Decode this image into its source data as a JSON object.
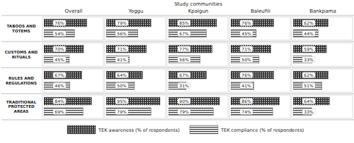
{
  "chart_data": {
    "type": "bar",
    "orientation": "horizontal",
    "title": "Study communities",
    "data_labels": true,
    "tick_labels": false,
    "legend": "bottom",
    "xlim": [
      0,
      100
    ],
    "panels": [
      "Overall",
      "Yoggu",
      "Kpalgun",
      "Baleufili",
      "Bankpama"
    ],
    "categories": [
      "TABOOS AND TOTEMS",
      "CUSTOMS AND RITUALS",
      "RULES AND REGULATIONS",
      "TRADITIONAL PROTECTED AREAS"
    ],
    "series": [
      {
        "name": "TEK awareness (% of respondents)",
        "color": "#3a3a3a",
        "values": [
          [
            76,
            79,
            85,
            76,
            62
          ],
          [
            70,
            71,
            77,
            71,
            59
          ],
          [
            67,
            64,
            67,
            76,
            62
          ],
          [
            84,
            95,
            90,
            86,
            64
          ]
        ],
        "value_labels": [
          [
            "76%",
            "79%",
            "85%",
            "76%",
            "62%"
          ],
          [
            "70%",
            "71%",
            "77%",
            "71%",
            "59%"
          ],
          [
            "67%",
            "64%",
            "67%",
            "76%",
            "62%"
          ],
          [
            "84%",
            "95%",
            "90%",
            "86%",
            "64%"
          ]
        ]
      },
      {
        "name": "TEK compliance (% of respondents)",
        "color": "#4a4a4a",
        "values": [
          [
            54,
            56,
            67,
            45,
            44
          ],
          [
            45,
            41,
            56,
            50,
            33
          ],
          [
            46,
            50,
            31,
            41,
            51
          ],
          [
            69,
            79,
            79,
            74,
            33
          ]
        ],
        "value_labels": [
          [
            "54%",
            "56%",
            "67%",
            "45%",
            "44%"
          ],
          [
            "45%",
            "41%",
            "56%",
            "50%",
            "33%"
          ],
          [
            "46%",
            "50%",
            "31%",
            "41%",
            "51%"
          ],
          [
            "69%",
            "79%",
            "79%",
            "74%",
            "33%"
          ]
        ]
      }
    ]
  }
}
